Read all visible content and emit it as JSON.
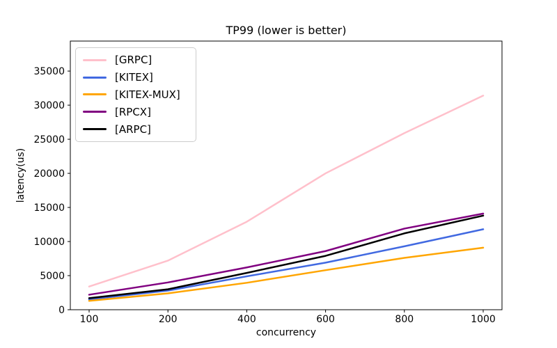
{
  "chart_data": {
    "type": "line",
    "title": "TP99 (lower is better)",
    "xlabel": "concurrency",
    "ylabel": "latency(us)",
    "x": [
      100,
      200,
      400,
      600,
      800,
      1000
    ],
    "x_scale": "categorical-even-spacing",
    "series": [
      {
        "name": "[GRPC]",
        "color": "#FFC0CB",
        "values": [
          3400,
          7200,
          12900,
          20000,
          25900,
          31400
        ]
      },
      {
        "name": "[KITEX]",
        "color": "#4169E1",
        "values": [
          1500,
          2800,
          4900,
          6900,
          9300,
          11800
        ]
      },
      {
        "name": "[KITEX-MUX]",
        "color": "#FFA500",
        "values": [
          1300,
          2400,
          3950,
          5800,
          7600,
          9100
        ]
      },
      {
        "name": "[RPCX]",
        "color": "#800080",
        "values": [
          2200,
          4000,
          6200,
          8600,
          11900,
          14100
        ]
      },
      {
        "name": "[ARPC]",
        "color": "#000000",
        "values": [
          1700,
          3000,
          5400,
          7900,
          11200,
          13800
        ]
      }
    ],
    "ylim": [
      0,
      39400
    ],
    "yticks": [
      0,
      5000,
      10000,
      15000,
      20000,
      25000,
      30000,
      35000
    ],
    "legend_position": "upper-left",
    "grid": false,
    "line_width": 2.5,
    "axis_color": "#000000",
    "background_color": "#ffffff"
  }
}
